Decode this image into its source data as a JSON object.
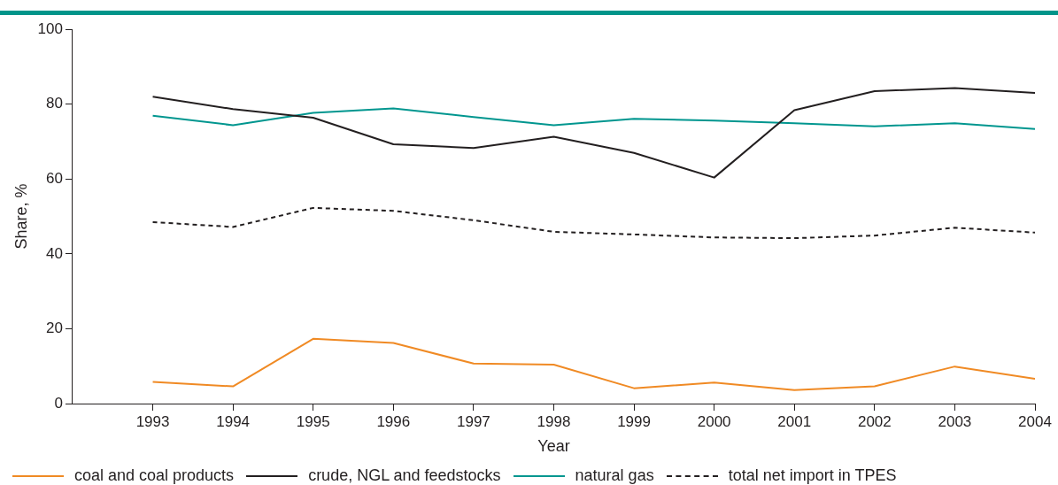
{
  "chart_data": {
    "type": "line",
    "xlabel": "Year",
    "ylabel": "Share, %",
    "x": [
      1993,
      1994,
      1995,
      1996,
      1997,
      1998,
      1999,
      2000,
      2001,
      2002,
      2003,
      2004
    ],
    "xlim": [
      1992,
      2004
    ],
    "xticks": [
      1993,
      1994,
      1995,
      1996,
      1997,
      1998,
      1999,
      2000,
      2001,
      2002,
      2003,
      2004
    ],
    "ylim": [
      0,
      100
    ],
    "yticks": [
      0,
      20,
      40,
      60,
      80,
      100
    ],
    "grid": false,
    "legend": "bottom",
    "marker": "none",
    "series": [
      {
        "name": "coal and coal products",
        "color": "#f08a24",
        "line_style": "solid",
        "values": [
          5.8,
          4.6,
          17.3,
          16.2,
          10.7,
          10.4,
          4.1,
          5.6,
          3.6,
          4.6,
          9.9,
          6.6
        ]
      },
      {
        "name": "crude, NGL and feedstocks",
        "color": "#231f20",
        "line_style": "solid",
        "values": [
          82,
          78.7,
          76.4,
          69.3,
          68.3,
          71.3,
          67,
          60.4,
          78.4,
          83.5,
          84.3,
          83
        ]
      },
      {
        "name": "natural gas",
        "color": "#00968f",
        "line_style": "solid",
        "values": [
          76.9,
          74.4,
          77.7,
          78.9,
          76.6,
          74.4,
          76.1,
          75.6,
          74.9,
          74.1,
          74.9,
          73.4
        ]
      },
      {
        "name": "total net import in TPES",
        "color": "#231f20",
        "line_style": "dashed",
        "values": [
          48.5,
          47.2,
          52.3,
          51.5,
          49,
          45.9,
          45.2,
          44.4,
          44.2,
          44.9,
          47,
          45.7
        ]
      }
    ]
  }
}
